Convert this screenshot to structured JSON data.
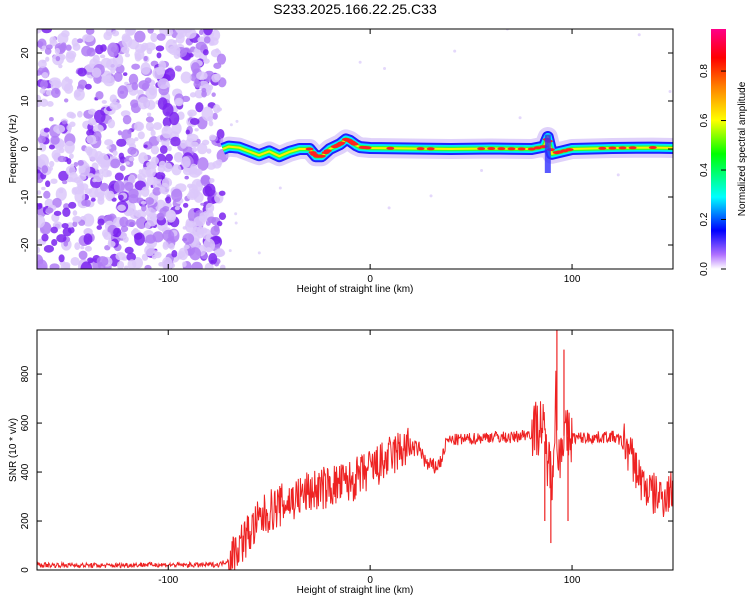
{
  "title": "S233.2025.166.22.25.C33",
  "chart_data": [
    {
      "type": "heatmap",
      "xlabel": "Height of straight line (km)",
      "ylabel": "Frequency (Hz)",
      "xlim": [
        -165,
        150
      ],
      "ylim": [
        -25,
        25
      ],
      "xticks": [
        -100,
        0,
        100
      ],
      "yticks": [
        -20,
        -10,
        0,
        10,
        20
      ],
      "noise_region_x": [
        -165,
        -73
      ],
      "ridge": {
        "x": [
          -73,
          -70,
          -65,
          -60,
          -55,
          -50,
          -45,
          -40,
          -35,
          -30,
          -27,
          -24,
          -20,
          -15,
          -12,
          -10,
          -7,
          -5,
          0,
          20,
          40,
          60,
          80,
          86,
          88,
          90,
          95,
          100,
          120,
          140,
          150
        ],
        "y": [
          0,
          0.5,
          0.3,
          -0.5,
          -1.3,
          -0.5,
          -1.5,
          -0.6,
          0,
          0,
          -1.5,
          -1.5,
          0,
          1.0,
          2.0,
          1.7,
          0.8,
          0.4,
          0.2,
          0.1,
          0,
          0.1,
          0,
          0.5,
          2.5,
          -1.0,
          -0.5,
          0,
          0.2,
          0.3,
          0.2
        ]
      },
      "colorbar": {
        "label": "Normalized spectral amplitude",
        "min": 0,
        "max": 0.97,
        "ticks": [
          0.0,
          0.2,
          0.4,
          0.6,
          0.8
        ],
        "colors": [
          "#ffffff",
          "#a060ff",
          "#0000ff",
          "#00ffff",
          "#00ff00",
          "#ffff00",
          "#ff8000",
          "#ff0000",
          "#ff0080"
        ]
      }
    },
    {
      "type": "line",
      "xlabel": "Height of straight line (km)",
      "ylabel": "SNR (10 * v/v)",
      "xlim": [
        -165,
        150
      ],
      "ylim": [
        0,
        980
      ],
      "xticks": [
        -100,
        0,
        100
      ],
      "yticks": [
        0,
        200,
        400,
        600,
        800
      ],
      "color": "#ee2222",
      "series": [
        {
          "x": [
            -165,
            -150,
            -130,
            -110,
            -90,
            -75,
            -70,
            -65,
            -60,
            -55,
            -50,
            -45,
            -40,
            -35,
            -30,
            -25,
            -20,
            -15,
            -10,
            -5,
            0,
            5,
            10,
            15,
            20,
            25,
            28,
            32,
            35,
            38,
            40,
            50,
            60,
            70,
            80,
            85,
            88,
            90,
            92,
            93,
            95,
            100,
            110,
            120,
            126,
            130,
            135,
            140,
            145,
            150
          ],
          "y": [
            20,
            20,
            18,
            22,
            20,
            22,
            40,
            100,
            150,
            200,
            240,
            260,
            280,
            300,
            320,
            330,
            340,
            350,
            360,
            380,
            410,
            430,
            460,
            490,
            500,
            490,
            430,
            420,
            440,
            530,
            530,
            535,
            545,
            540,
            560,
            600,
            450,
            380,
            720,
            420,
            550,
            540,
            540,
            545,
            520,
            450,
            350,
            310,
            300,
            330
          ]
        }
      ],
      "annotations": [
        {
          "x": 86.5,
          "y": 200
        },
        {
          "x": 89.5,
          "y": 110
        },
        {
          "x": 92.5,
          "y": 980
        },
        {
          "x": 96,
          "y": 900
        },
        {
          "x": 98,
          "y": 200
        }
      ]
    }
  ]
}
